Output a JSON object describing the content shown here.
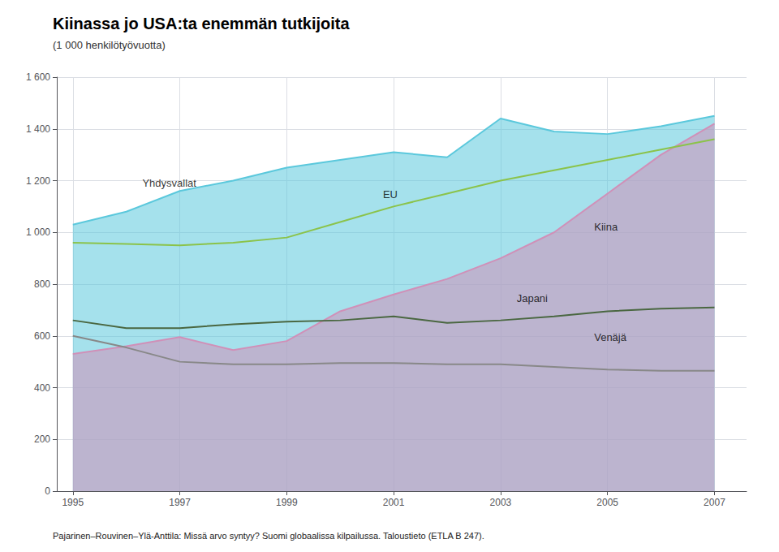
{
  "chart_data": {
    "type": "line",
    "title": "Kiinassa jo USA:ta enemmän tutkijoita",
    "subtitle": "(1 000 henkilötyövuotta)",
    "footnote": "Pajarinen–Rouvinen–Ylä-Anttila: Missä arvo syntyy? Suomi globaalissa kilpailussa. Taloustieto (ETLA B 247).",
    "x": [
      1995,
      1996,
      1997,
      1998,
      1999,
      2000,
      2001,
      2002,
      2003,
      2004,
      2005,
      2006,
      2007
    ],
    "series": [
      {
        "name": "Yhdysvallat",
        "type": "area",
        "color": "#5bc8dc",
        "values": [
          1030,
          1080,
          1160,
          1200,
          1250,
          1280,
          1310,
          1290,
          1440,
          1390,
          1380,
          1410,
          1450
        ]
      },
      {
        "name": "EU",
        "type": "line",
        "color": "#8bc34a",
        "values": [
          960,
          955,
          950,
          960,
          980,
          1040,
          1100,
          1150,
          1200,
          1240,
          1280,
          1320,
          1360
        ]
      },
      {
        "name": "Kiina",
        "type": "area",
        "color": "#d090b8",
        "values": [
          530,
          560,
          595,
          545,
          580,
          695,
          760,
          820,
          900,
          1000,
          1150,
          1300,
          1420
        ]
      },
      {
        "name": "Japani",
        "type": "line",
        "color": "#4a6741",
        "values": [
          660,
          630,
          630,
          645,
          655,
          660,
          675,
          650,
          660,
          675,
          695,
          705,
          710
        ]
      },
      {
        "name": "Venäjä",
        "type": "line",
        "color": "#888888",
        "values": [
          600,
          555,
          500,
          490,
          490,
          495,
          495,
          490,
          490,
          480,
          470,
          465,
          465
        ]
      }
    ],
    "annotations": [
      {
        "text": "Yhdysvallat",
        "x": 1996.3,
        "y": 1190
      },
      {
        "text": "EU",
        "x": 2000.8,
        "y": 1148
      },
      {
        "text": "Kiina",
        "x": 2004.75,
        "y": 1020
      },
      {
        "text": "Japani",
        "x": 2003.3,
        "y": 745
      },
      {
        "text": "Venäjä",
        "x": 2004.75,
        "y": 595
      }
    ],
    "xlim": [
      1994.7,
      2007.6
    ],
    "xticks": [
      1995,
      1997,
      1999,
      2001,
      2003,
      2005,
      2007
    ],
    "ylim": [
      0,
      1600
    ],
    "yticks": [
      0,
      200,
      400,
      600,
      {
        "value": 800,
        "label": "800"
      },
      {
        "value": 1000,
        "label": "1 000"
      },
      {
        "value": 1200,
        "label": "1 200"
      },
      {
        "value": 1400,
        "label": "1 400"
      },
      {
        "value": 1600,
        "label": "1 600"
      }
    ],
    "grid": true
  }
}
